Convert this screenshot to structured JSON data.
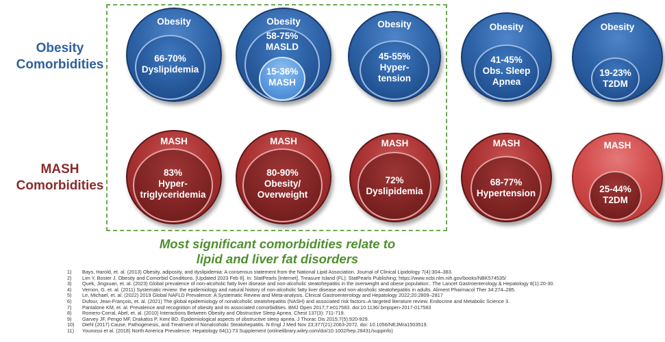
{
  "row_labels": {
    "obesity": [
      "Obesity",
      "Comorbidities"
    ],
    "mash": [
      "MASH",
      "Comorbidities"
    ]
  },
  "obesity_row": [
    {
      "outer": "Obesity",
      "inner": [
        "66-70%",
        "Dyslipidemia"
      ]
    },
    {
      "outer": "Obesity",
      "middle": [
        "58-75%",
        "MASLD"
      ],
      "inner": [
        "15-36%",
        "MASH"
      ]
    },
    {
      "outer": "Obesity",
      "inner": [
        "45-55%",
        "Hyper-",
        "tension"
      ]
    },
    {
      "outer": "Obesity",
      "inner": [
        "41-45%",
        "Obs. Sleep",
        "Apnea"
      ]
    },
    {
      "outer": "Obesity",
      "inner": [
        "19-23%",
        "T2DM"
      ]
    }
  ],
  "mash_row": [
    {
      "outer": "MASH",
      "inner": [
        "83%",
        "Hyper-",
        "triglyceridemia"
      ]
    },
    {
      "outer": "MASH",
      "inner": [
        "80-90%",
        "Obesity/",
        "Overweight"
      ]
    },
    {
      "outer": "MASH",
      "inner": [
        "72%",
        "Dyslipidemia"
      ]
    },
    {
      "outer": "MASH",
      "inner": [
        "68-77%",
        "Hypertension"
      ]
    },
    {
      "outer": "MASH",
      "inner": [
        "25-44%",
        "T2DM"
      ]
    }
  ],
  "tagline": [
    "Most significant comorbidities relate to",
    "lipid and liver fat disorders"
  ],
  "references": [
    {
      "num": "1)",
      "text": "Bays, Harold, et. al. (2013) Obesity, adiposity, and dyslipidemia: A consensus statement from the National Lipid Association.  Journal of Clinical Lipidology  7(4):304–383."
    },
    {
      "num": "2)",
      "text": "Lim Y, Boster J. Obesity and Comorbid Conditions. [Updated 2023 Feb 8]. In: StatPearls [Internet]. Treasure Island (FL): StatPearls Publishing; https://www.ncbi.nlm.nih.gov/books/NBK574535/"
    },
    {
      "num": "3)",
      "text": "Quek, Jingxuan, et. al. (2023) Global prevalence of non-alcoholic fatty liver disease and non-alcoholic steatohepatitis in the overweight and obese population:.  The Lancet Gastroenterology & Hepatology 8(1):20-30."
    },
    {
      "num": "4)",
      "text": "Vernon, G. et. al. (2011) Systematic review: the epidemiology and natural history of non-alcoholic fatty liver disease and non-alcoholic steatohepatitis in adults. Aliment Pharmacol Ther 34:274–285."
    },
    {
      "num": "5)",
      "text": "Le, Michael, et. al. (2022) 2019 Global NAFLD Prevalence: A Systematic Review and Meta-analysis. Clinical Gastroenterology and Hepatology 2022;20:2809–2817"
    },
    {
      "num": "6)",
      "text": "Dufour, Jean-François, et. al.  (2021) The global epidemiology of nonalcoholic steatohepatitis (NASH) and associated risk factors–A targeted literature review. Endocrine and Metabolic Science 3."
    },
    {
      "num": "7)",
      "text": "Pantalone KM, et. al. Prevalence and recognition of obesity and its associated comorbidities. BMJ Open 2017;7:e017583. doi:10.1136/ bmjopen-2017-017583"
    },
    {
      "num": "8)",
      "text": "Romero-Corral, Abel, et. al. (2010) Interactions Between Obesity and Obstructive Sleep Apnea. Chest 137(3): 711-719."
    },
    {
      "num": "9)",
      "text": "Garvey JF, Pengo MF, Drakatos P, Kent BD. Epidemiological aspects of obstructive sleep apnea. J Thorac Dis 2015;7(5):920-929."
    },
    {
      "num": "10)",
      "text": "Diehl (2017) Cause, Pathogenesis, and Treatment of Nonalcoholic Steatohepatitis.   N Engl J Med Nov 23;377(21):2063-2072. doi: 10.1056/NEJMra1503519."
    },
    {
      "num": "11)",
      "text": "Younossi et al. (2018) North America Prevalence. Hepatology 64(1):73  Supplement (onlinelibrary.wiley.com/doi/10.1002/hep.28431/suppinfo)"
    }
  ],
  "colors": {
    "obesity_blue": "#2e63a8",
    "mash_red": "#a83232",
    "tagline_green": "#4f8f2e",
    "dash_green": "#6aa84f"
  }
}
